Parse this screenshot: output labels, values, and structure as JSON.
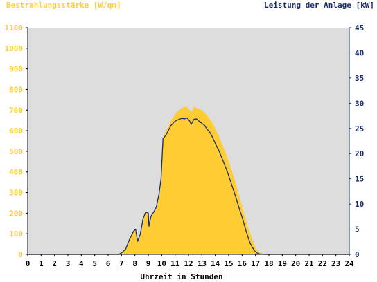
{
  "chart_data": {
    "type": "area",
    "left_axis_label": "Bestrahlungsstärke [W/qm]",
    "right_axis_label": "Leistung der Anlage [kW]",
    "xlabel": "Uhrzeit in Stunden",
    "xlim": [
      0,
      24
    ],
    "ylim_left": [
      0,
      1100
    ],
    "ylim_right": [
      0,
      45
    ],
    "x_ticks": [
      "0",
      "1",
      "2",
      "3",
      "4",
      "5",
      "6",
      "7",
      "8",
      "9",
      "10",
      "11",
      "12",
      "13",
      "14",
      "15",
      "16",
      "17",
      "18",
      "19",
      "20",
      "21",
      "22",
      "23",
      "24"
    ],
    "y_left_ticks": [
      "0",
      "100",
      "200",
      "300",
      "400",
      "500",
      "600",
      "700",
      "800",
      "900",
      "1000",
      "1100"
    ],
    "y_right_ticks": [
      "0",
      "5",
      "10",
      "15",
      "20",
      "25",
      "30",
      "35",
      "40",
      "45"
    ],
    "grid": false,
    "colors": {
      "irradiance": "#ffcc33",
      "power": "#1a2d6b",
      "plot_background": "#dddddd",
      "left_axis_text": "#ffcc33",
      "right_axis_text": "#1a2d6b",
      "x_axis_text": "#000000"
    },
    "series": [
      {
        "name": "Bestrahlungsstärke",
        "axis": "left",
        "x": [
          0,
          6.8,
          7.0,
          7.3,
          7.6,
          7.9,
          8.05,
          8.2,
          8.4,
          8.6,
          8.8,
          9.0,
          9.05,
          9.2,
          9.4,
          9.6,
          9.8,
          9.95,
          10.1,
          10.3,
          10.5,
          10.7,
          10.9,
          11.1,
          11.3,
          11.5,
          11.7,
          11.9,
          12.1,
          12.2,
          12.4,
          12.6,
          12.8,
          13.0,
          13.2,
          13.4,
          13.6,
          13.8,
          14.0,
          14.3,
          14.6,
          14.9,
          15.2,
          15.5,
          15.8,
          16.0,
          16.3,
          16.6,
          16.9,
          17.1,
          17.3,
          17.6,
          18.0,
          24
        ],
        "y": [
          0,
          0,
          10,
          30,
          75,
          115,
          125,
          70,
          100,
          175,
          205,
          200,
          140,
          185,
          205,
          230,
          290,
          360,
          560,
          600,
          620,
          650,
          670,
          690,
          700,
          710,
          715,
          715,
          700,
          690,
          715,
          712,
          705,
          700,
          690,
          670,
          655,
          635,
          610,
          570,
          520,
          470,
          410,
          350,
          280,
          230,
          160,
          100,
          50,
          20,
          8,
          3,
          0,
          0
        ]
      },
      {
        "name": "Leistung der Anlage",
        "axis": "right",
        "x": [
          0,
          6.8,
          7.0,
          7.3,
          7.6,
          7.9,
          8.05,
          8.2,
          8.4,
          8.6,
          8.8,
          9.0,
          9.05,
          9.2,
          9.4,
          9.6,
          9.8,
          9.95,
          10.1,
          10.3,
          10.5,
          10.7,
          10.9,
          11.1,
          11.3,
          11.5,
          11.7,
          11.9,
          12.1,
          12.2,
          12.4,
          12.6,
          12.8,
          13.0,
          13.2,
          13.4,
          13.6,
          13.8,
          14.0,
          14.3,
          14.6,
          14.9,
          15.2,
          15.5,
          15.8,
          16.0,
          16.3,
          16.6,
          16.9,
          17.1,
          17.3,
          17.6,
          18.0,
          24
        ],
        "y": [
          0,
          0,
          0.3,
          1.0,
          3.0,
          4.6,
          5.0,
          2.6,
          4.0,
          7.0,
          8.4,
          8.2,
          5.6,
          7.6,
          8.4,
          9.4,
          12.0,
          15.0,
          23.0,
          23.6,
          24.6,
          25.6,
          26.2,
          26.6,
          26.8,
          27.0,
          26.9,
          27.1,
          26.4,
          25.8,
          26.8,
          26.9,
          26.4,
          26.0,
          25.6,
          24.8,
          24.2,
          23.2,
          22.0,
          20.4,
          18.4,
          16.4,
          14.0,
          11.6,
          9.0,
          7.4,
          4.6,
          2.2,
          0.8,
          0.3,
          0.1,
          0,
          0,
          0
        ]
      }
    ]
  }
}
